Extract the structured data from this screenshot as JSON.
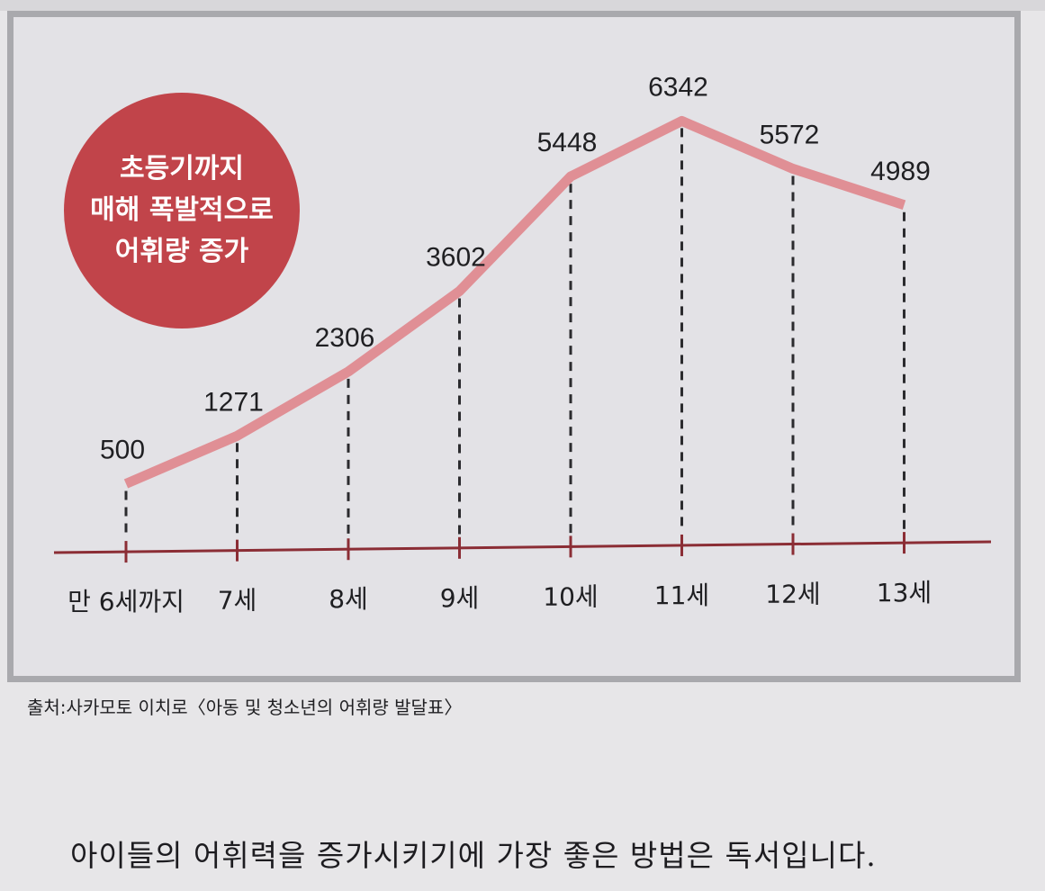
{
  "badge": {
    "line1": "초등기까지",
    "line2": "매해 폭발적으로",
    "line3": "어휘량 증가"
  },
  "chart_data": {
    "type": "line",
    "categories": [
      "만 6세까지",
      "7세",
      "8세",
      "9세",
      "10세",
      "11세",
      "12세",
      "13세"
    ],
    "values": [
      500,
      1271,
      2306,
      3602,
      5448,
      6342,
      5572,
      4989
    ],
    "title": "",
    "xlabel": "",
    "ylabel": "",
    "grid": false,
    "legend": "none",
    "line_color": "#e08f95",
    "axis_color": "#8b2d35",
    "guide_style": "dashed vertical lines from data points to axis"
  },
  "source": "출처:사카모토 이치로〈아동 및 청소년의 어휘량 발달표〉",
  "body_text": "아이들의 어휘력을 증가시키기에 가장 좋은 방법은 독서입니다."
}
